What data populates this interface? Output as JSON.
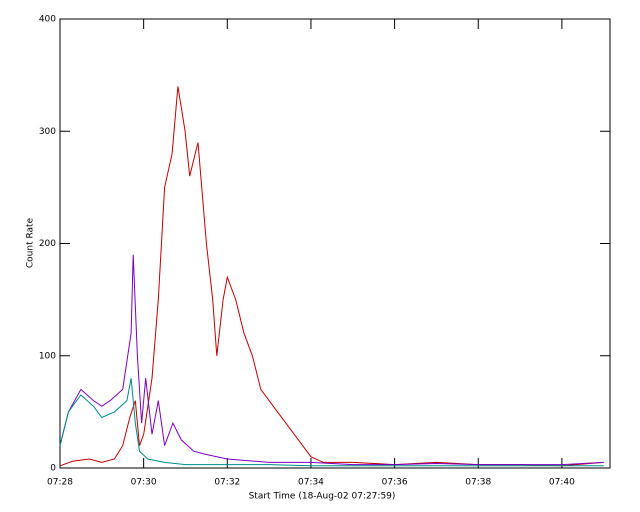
{
  "chart_data": {
    "type": "line",
    "x_label": "Start Time (18-Aug-02 07:27:59)",
    "y_label": "Count Rate",
    "xlim": [
      448,
      461.15
    ],
    "xticks": [
      {
        "value": 448,
        "label": "07:28"
      },
      {
        "value": 450,
        "label": "07:30"
      },
      {
        "value": 452,
        "label": "07:32"
      },
      {
        "value": 454,
        "label": "07:34"
      },
      {
        "value": 456,
        "label": "07:36"
      },
      {
        "value": 458,
        "label": "07:38"
      },
      {
        "value": 460,
        "label": "07:40"
      }
    ],
    "ylim": [
      0,
      400
    ],
    "yticks": [
      0,
      100,
      200,
      300,
      400
    ],
    "series": [
      {
        "name": "red",
        "color": "#c00000",
        "x": [
          448,
          448.3,
          448.7,
          449.0,
          449.3,
          449.5,
          449.67,
          449.8,
          449.9,
          450.0,
          450.2,
          450.35,
          450.5,
          450.68,
          450.82,
          450.99,
          451.1,
          451.3,
          451.5,
          451.65,
          451.75,
          451.9,
          452.0,
          452.2,
          452.4,
          452.6,
          452.8,
          453.0,
          453.2,
          453.4,
          453.6,
          453.8,
          454.0,
          454.3,
          455,
          456,
          457,
          458,
          459,
          460,
          461
        ],
        "values": [
          2,
          6,
          8,
          5,
          8,
          20,
          45,
          60,
          20,
          30,
          80,
          150,
          250,
          280,
          340,
          300,
          260,
          290,
          200,
          150,
          100,
          150,
          170,
          150,
          120,
          100,
          70,
          60,
          50,
          40,
          30,
          20,
          10,
          5,
          5,
          3,
          5,
          3,
          3,
          2,
          5
        ]
      },
      {
        "name": "purple",
        "color": "#7a00c0",
        "x": [
          448,
          448.2,
          448.5,
          448.8,
          449.0,
          449.2,
          449.5,
          449.7,
          449.75,
          449.85,
          449.95,
          450.05,
          450.2,
          450.35,
          450.5,
          450.7,
          450.9,
          451.2,
          451.5,
          452,
          453,
          454,
          455,
          456,
          457,
          458,
          459,
          460,
          461
        ],
        "values": [
          20,
          50,
          70,
          60,
          55,
          60,
          70,
          120,
          190,
          100,
          40,
          80,
          30,
          60,
          20,
          40,
          25,
          15,
          12,
          8,
          5,
          5,
          3,
          3,
          4,
          3,
          3,
          3,
          5
        ]
      },
      {
        "name": "cyan",
        "color": "#008b8b",
        "x": [
          448,
          448.2,
          448.5,
          448.8,
          449.0,
          449.3,
          449.6,
          449.7,
          449.8,
          449.9,
          450.1,
          450.5,
          451,
          452,
          453,
          454,
          456,
          458,
          461
        ],
        "values": [
          20,
          50,
          65,
          55,
          45,
          50,
          60,
          80,
          40,
          15,
          8,
          5,
          3,
          3,
          3,
          2,
          2,
          2,
          2
        ]
      }
    ]
  }
}
